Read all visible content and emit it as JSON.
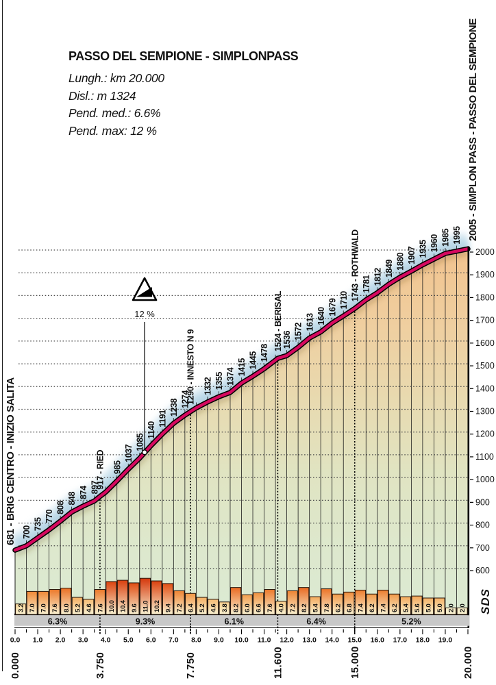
{
  "header": {
    "title": "PASSO DEL SEMPIONE - SIMPLONPASS",
    "stats": [
      "Lungh.: km  20.000",
      "Disl.: m 1324",
      "Pend. med.: 6.6%",
      "Pend. max: 12 %"
    ]
  },
  "logo": "SDS",
  "chart_data": {
    "type": "area",
    "title": "PASSO DEL SEMPIONE - SIMPLONPASS",
    "length_km": 20.0,
    "elevation_gain_m": 1324,
    "avg_gradient_pct": 6.6,
    "max_gradient_pct": 12,
    "start_label": "681 - BRIG CENTRO - INIZIO SALITA",
    "end_label": "2005 - SIMPLON PASS - PASSO DEL SEMPIONE",
    "xlabel": "km",
    "ylabel": "m",
    "ylim": [
      600,
      2000
    ],
    "y_tick_step": 100,
    "grid": "dotted-horizontal-100m",
    "profile_points": [
      [
        0,
        681
      ],
      [
        0.5,
        700
      ],
      [
        1,
        735
      ],
      [
        1.5,
        770
      ],
      [
        2,
        808
      ],
      [
        2.5,
        848
      ],
      [
        3,
        874
      ],
      [
        3.5,
        897
      ],
      [
        3.75,
        917
      ],
      [
        4,
        936
      ],
      [
        4.5,
        985
      ],
      [
        5,
        1037
      ],
      [
        5.5,
        1085
      ],
      [
        6,
        1140
      ],
      [
        6.5,
        1191
      ],
      [
        7,
        1238
      ],
      [
        7.5,
        1274
      ],
      [
        7.75,
        1290
      ],
      [
        8,
        1306
      ],
      [
        8.5,
        1332
      ],
      [
        9,
        1355
      ],
      [
        9.5,
        1374
      ],
      [
        10,
        1415
      ],
      [
        10.5,
        1445
      ],
      [
        11,
        1478
      ],
      [
        11.5,
        1516
      ],
      [
        11.6,
        1524
      ],
      [
        12,
        1536
      ],
      [
        12.5,
        1572
      ],
      [
        13,
        1613
      ],
      [
        13.5,
        1640
      ],
      [
        14,
        1679
      ],
      [
        14.5,
        1710
      ],
      [
        15,
        1743
      ],
      [
        15.5,
        1781
      ],
      [
        16,
        1812
      ],
      [
        16.5,
        1849
      ],
      [
        17,
        1880
      ],
      [
        17.5,
        1907
      ],
      [
        18,
        1935
      ],
      [
        18.5,
        1960
      ],
      [
        19,
        1985
      ],
      [
        19.5,
        1995
      ],
      [
        20,
        2005
      ]
    ],
    "point_labels": [
      {
        "km": 0.5,
        "label": "700"
      },
      {
        "km": 1,
        "label": "735"
      },
      {
        "km": 1.5,
        "label": "770"
      },
      {
        "km": 2,
        "label": "808"
      },
      {
        "km": 2.5,
        "label": "848"
      },
      {
        "km": 3,
        "label": "874"
      },
      {
        "km": 3.5,
        "label": "897"
      },
      {
        "km": 3.75,
        "label": "917 - RIED"
      },
      {
        "km": 4.5,
        "label": "985"
      },
      {
        "km": 5,
        "label": "1037"
      },
      {
        "km": 5.5,
        "label": "1085"
      },
      {
        "km": 6,
        "label": "1140"
      },
      {
        "km": 6.5,
        "label": "1191"
      },
      {
        "km": 7,
        "label": "1238"
      },
      {
        "km": 7.5,
        "label": "1274"
      },
      {
        "km": 7.75,
        "label": "1290 - INNESTO N 9"
      },
      {
        "km": 8.5,
        "label": "1332"
      },
      {
        "km": 9,
        "label": "1355"
      },
      {
        "km": 9.5,
        "label": "1374"
      },
      {
        "km": 10,
        "label": "1415"
      },
      {
        "km": 10.5,
        "label": "1445"
      },
      {
        "km": 11,
        "label": "1478"
      },
      {
        "km": 11.6,
        "label": "1524 - BERISAL"
      },
      {
        "km": 12,
        "label": "1536"
      },
      {
        "km": 12.5,
        "label": "1572"
      },
      {
        "km": 13,
        "label": "1613"
      },
      {
        "km": 13.5,
        "label": "1640"
      },
      {
        "km": 14,
        "label": "1679"
      },
      {
        "km": 14.5,
        "label": "1710"
      },
      {
        "km": 15,
        "label": "1743 - ROTHWALD"
      },
      {
        "km": 15.5,
        "label": "1781"
      },
      {
        "km": 16,
        "label": "1812"
      },
      {
        "km": 16.5,
        "label": "1849"
      },
      {
        "km": 17,
        "label": "1880"
      },
      {
        "km": 17.5,
        "label": "1907"
      },
      {
        "km": 18,
        "label": "1935"
      },
      {
        "km": 18.5,
        "label": "1960"
      },
      {
        "km": 19,
        "label": "1985"
      },
      {
        "km": 19.5,
        "label": "1995"
      }
    ],
    "max_marker": {
      "km": 5.72,
      "elev": 1111,
      "label": "12 %"
    },
    "gradient_bars": {
      "width_km": 0.5,
      "values": [
        3.2,
        7.0,
        7.0,
        7.6,
        8.0,
        5.2,
        4.6,
        7.6,
        10.0,
        10.4,
        9.6,
        11.0,
        10.2,
        9.4,
        7.2,
        6.4,
        5.2,
        4.6,
        3.8,
        8.2,
        6.0,
        6.6,
        7.6,
        4.0,
        7.2,
        8.2,
        5.4,
        7.8,
        6.2,
        6.8,
        7.4,
        6.2,
        7.4,
        6.2,
        5.4,
        5.6,
        5.0,
        5.0,
        2.0,
        2.0
      ]
    },
    "sections": [
      {
        "from_km": 0,
        "to_km": 3.75,
        "label": "6.3%"
      },
      {
        "from_km": 3.75,
        "to_km": 7.75,
        "label": "9.3%"
      },
      {
        "from_km": 7.75,
        "to_km": 11.6,
        "label": "6.1%"
      },
      {
        "from_km": 11.6,
        "to_km": 15,
        "label": "6.4%"
      },
      {
        "from_km": 15,
        "to_km": 20,
        "label": "5.2%"
      }
    ],
    "km_markers": [
      {
        "km": 0,
        "label": "0.000"
      },
      {
        "km": 3.75,
        "label": "3.750"
      },
      {
        "km": 7.75,
        "label": "7.750"
      },
      {
        "km": 11.6,
        "label": "11.600"
      },
      {
        "km": 15,
        "label": "15.000"
      },
      {
        "km": 20,
        "label": "20.000"
      }
    ],
    "x_tick_labels": [
      "0.0",
      "1.0",
      "2.0",
      "3.0",
      "4.0",
      "5.0",
      "6.0",
      "7.0",
      "8.0",
      "9.0",
      "10.0",
      "11.0",
      "12.0",
      "13.0",
      "14.0",
      "15.0",
      "16.0",
      "17.0",
      "18.0",
      "19.0"
    ],
    "colors": {
      "line": "#d6095f",
      "line_edge": "#000000",
      "glow": "#b7d6e6",
      "section_band": "#c8c8c8",
      "bar_bottom": "#f9f1d0",
      "fill_top": "#f2c38e",
      "fill_bottom": "#dcead3"
    }
  }
}
